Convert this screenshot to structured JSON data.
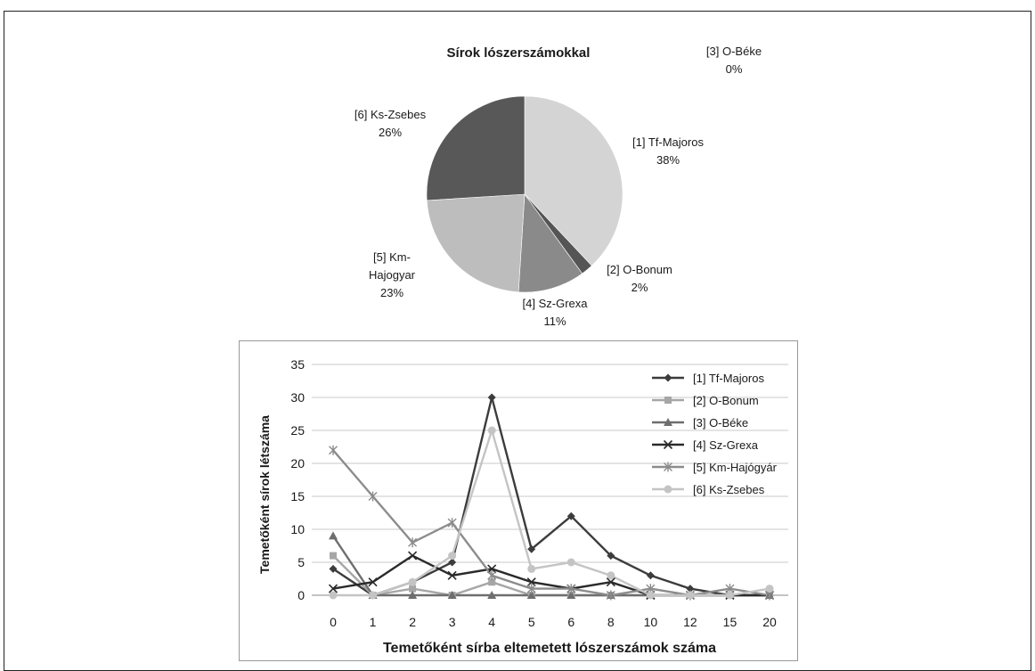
{
  "chart_data": [
    {
      "type": "pie",
      "title": "Sírok lószerszámokkal",
      "slices": [
        {
          "label": "[1] Tf-Majoros",
          "percent_label": "38%",
          "value": 38,
          "color": "#d4d4d4"
        },
        {
          "label": "[2] O-Bonum",
          "percent_label": "2%",
          "value": 2,
          "color": "#555555"
        },
        {
          "label": "[3] O-Béke",
          "percent_label": "0%",
          "value": 0,
          "color": "#3a3a3a"
        },
        {
          "label": "[4] Sz-Grexa",
          "percent_label": "11%",
          "value": 11,
          "color": "#8a8a8a"
        },
        {
          "label": "[5] Km- Hajogyar",
          "percent_label": "23%",
          "value": 23,
          "color": "#bdbdbd"
        },
        {
          "label": "[6] Ks-Zsebes",
          "percent_label": "26%",
          "value": 26,
          "color": "#585858"
        }
      ]
    },
    {
      "type": "line",
      "xlabel": "Temetőként sírba eltemetett lószerszámok száma",
      "ylabel": "Temetőként  sírok létszáma",
      "categories": [
        "0",
        "1",
        "2",
        "3",
        "4",
        "5",
        "6",
        "8",
        "10",
        "12",
        "15",
        "20"
      ],
      "ylim": [
        0,
        35
      ],
      "yticks": [
        0,
        5,
        10,
        15,
        20,
        25,
        30,
        35
      ],
      "grid": "horizontal",
      "legend_position": "right",
      "series": [
        {
          "name": "[1] Tf-Majoros",
          "marker": "diamond",
          "color": "#3c3c3c",
          "values": [
            4,
            0,
            2,
            5,
            30,
            7,
            12,
            6,
            3,
            1,
            0,
            0
          ]
        },
        {
          "name": "[2] O-Bonum",
          "marker": "square",
          "color": "#a6a6a6",
          "values": [
            6,
            0,
            1,
            0,
            2,
            0,
            0,
            0,
            0,
            0,
            0,
            0
          ]
        },
        {
          "name": "[3] O-Béke",
          "marker": "triangle",
          "color": "#6e6e6e",
          "values": [
            9,
            0,
            0,
            0,
            0,
            0,
            0,
            0,
            0,
            0,
            0,
            0
          ]
        },
        {
          "name": "[4] Sz-Grexa",
          "marker": "x",
          "color": "#2a2a2a",
          "values": [
            1,
            2,
            6,
            3,
            4,
            2,
            1,
            2,
            0,
            0,
            0,
            0
          ]
        },
        {
          "name": "[5] Km-Hajógyár",
          "marker": "star",
          "color": "#8c8c8c",
          "values": [
            22,
            15,
            8,
            11,
            3,
            1,
            1,
            0,
            1,
            0,
            1,
            0
          ]
        },
        {
          "name": "[6] Ks-Zsebes",
          "marker": "circle",
          "color": "#c4c4c4",
          "values": [
            0,
            0,
            2,
            6,
            25,
            4,
            5,
            3,
            0,
            0,
            0,
            1
          ]
        }
      ]
    }
  ]
}
